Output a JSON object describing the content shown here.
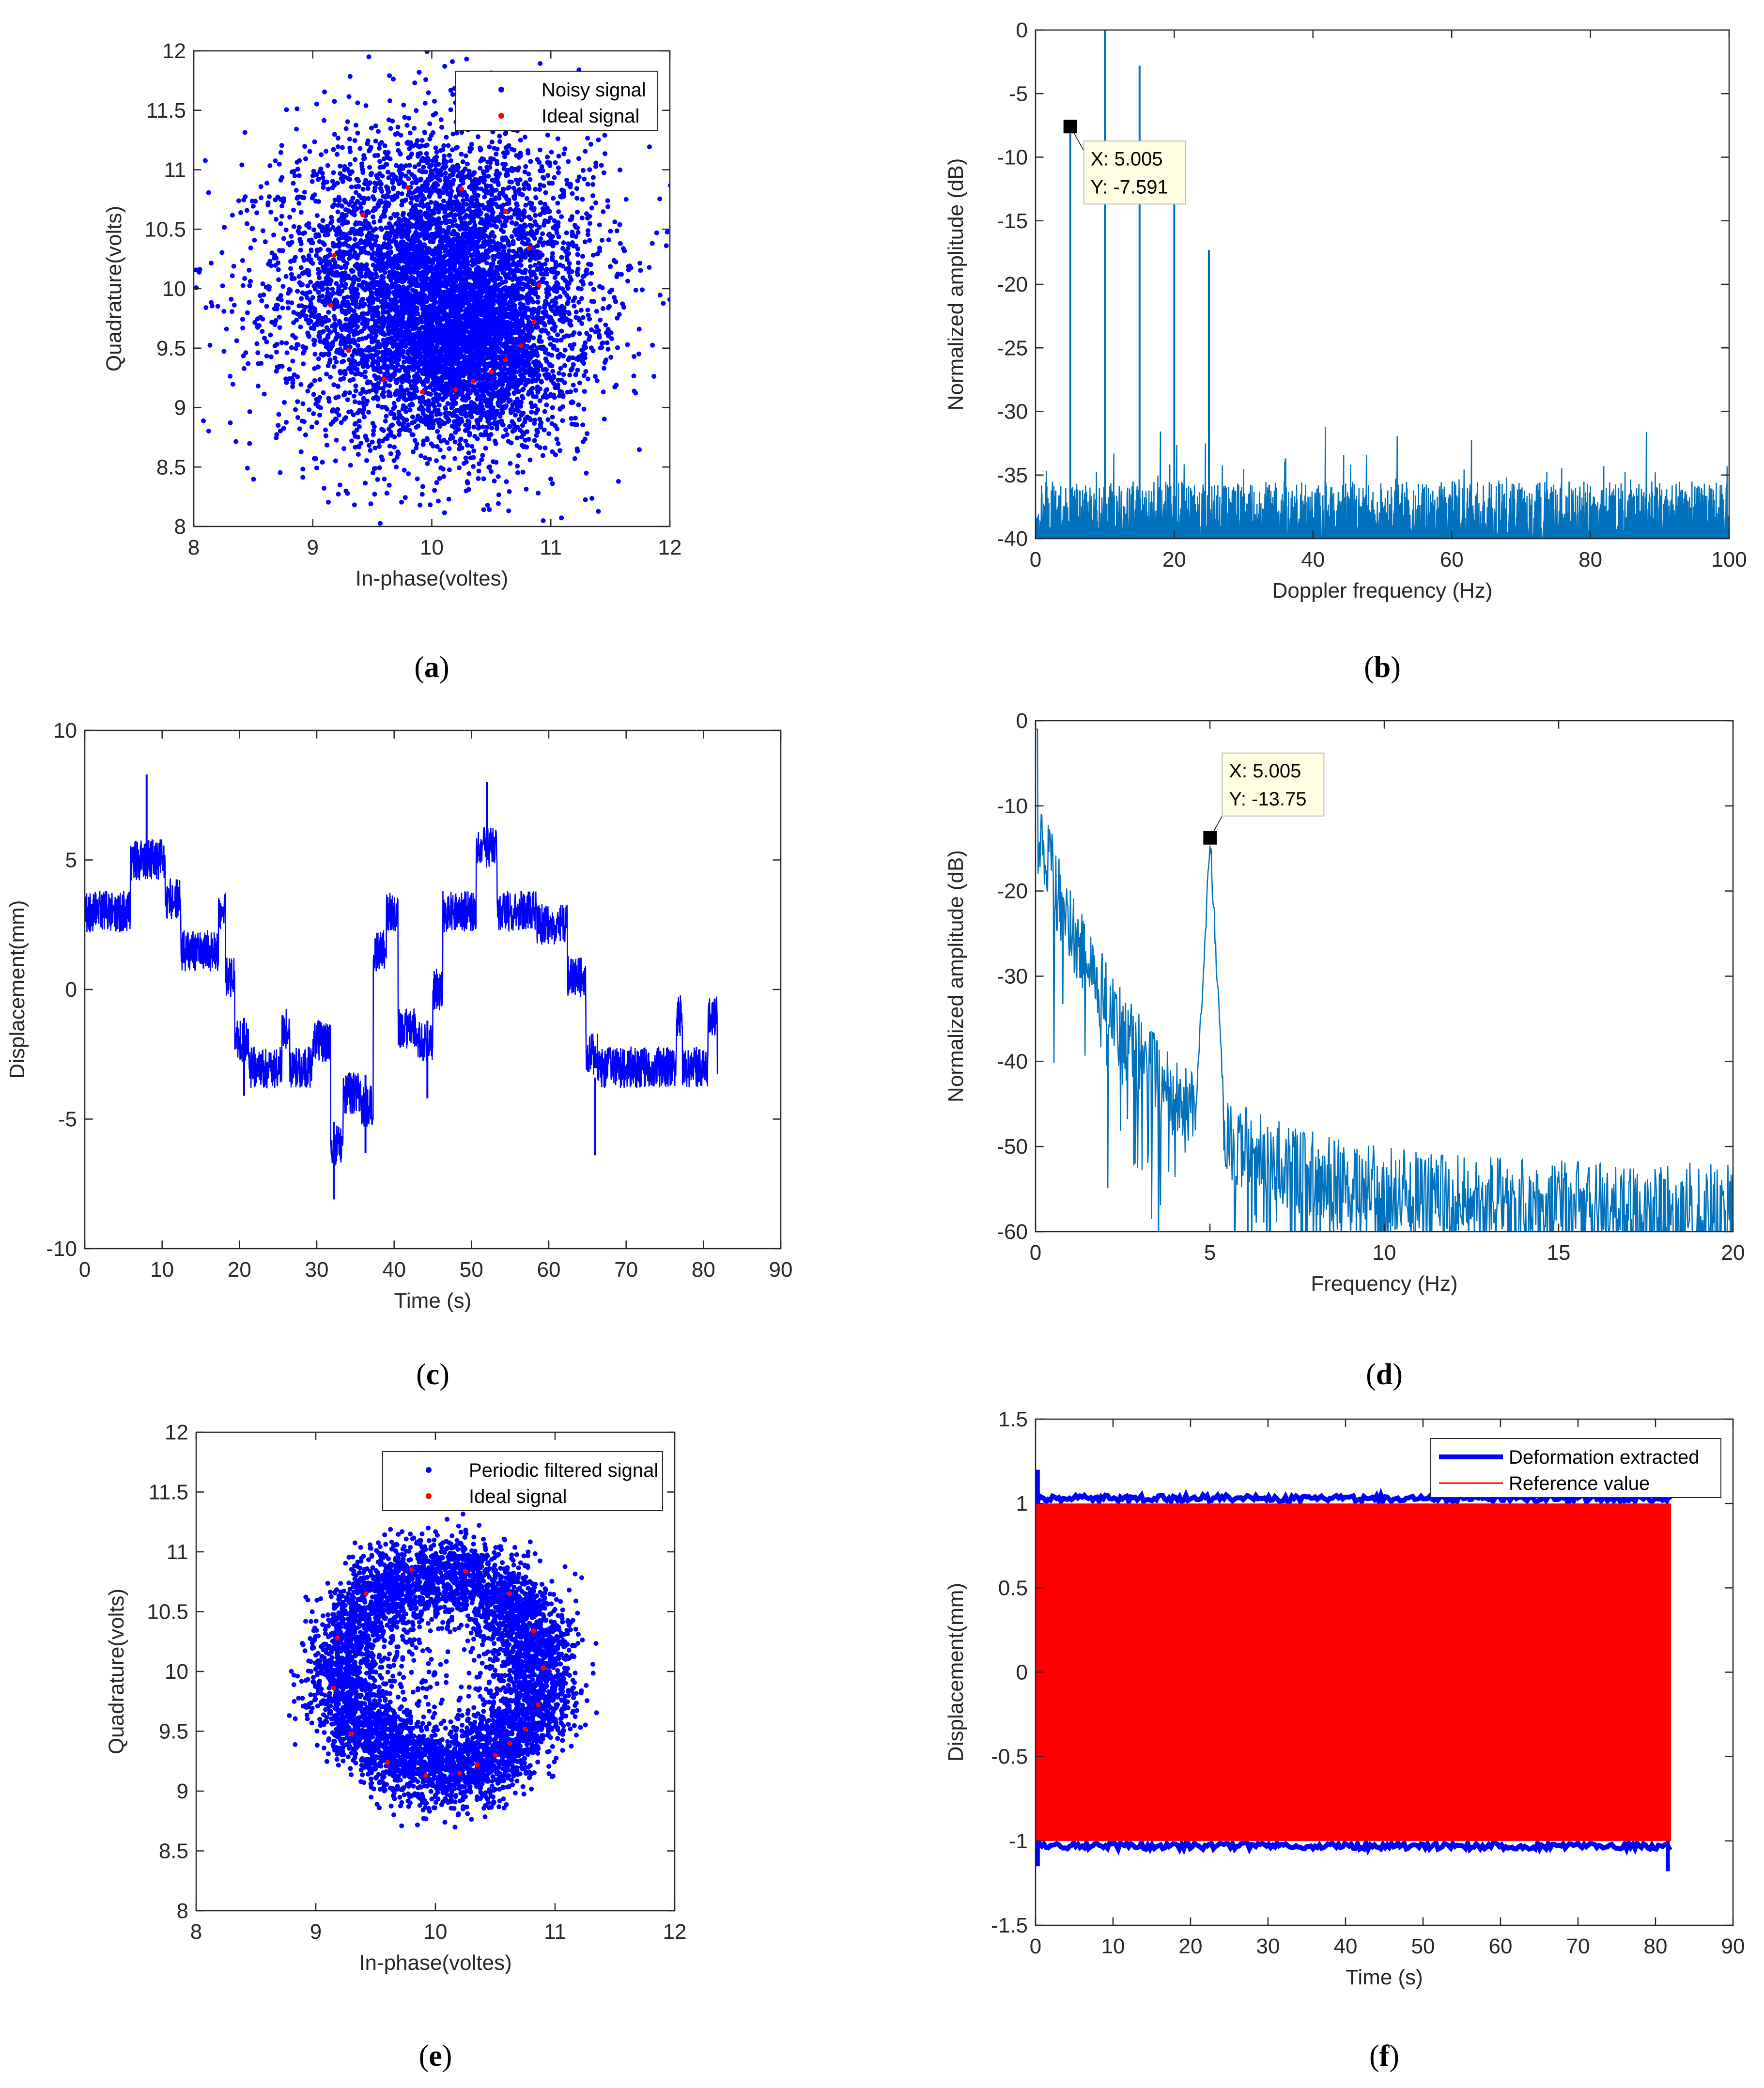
{
  "colors": {
    "blue": "#0000ff",
    "red": "#ff0000",
    "spectrum": "#0072bd",
    "axis": "#262626",
    "tooltip_bg": "#ffffe1"
  },
  "chart_data": [
    {
      "id": "a",
      "type": "scatter",
      "caption": "(a)",
      "caption_letter": "a",
      "xlabel": "In-phase(voltes)",
      "ylabel": "Quadrature(volts)",
      "xlim": [
        8,
        12
      ],
      "ylim": [
        8,
        12
      ],
      "xticks": [
        "8",
        "9",
        "10",
        "11",
        "12"
      ],
      "yticks": [
        "8",
        "8.5",
        "9",
        "9.5",
        "10",
        "10.5",
        "11",
        "11.5",
        "12"
      ],
      "legend": [
        "Noisy signal",
        "Ideal signal"
      ],
      "noise_model": {
        "center": [
          10.05,
          10.0
        ],
        "sd": 0.65,
        "points": 6000
      },
      "ideal_points": [
        [
          9.42,
          10.62
        ],
        [
          9.8,
          10.85
        ],
        [
          10.25,
          10.84
        ],
        [
          10.62,
          10.65
        ],
        [
          10.82,
          10.34
        ],
        [
          10.9,
          10.03
        ],
        [
          10.86,
          9.72
        ],
        [
          10.75,
          9.52
        ],
        [
          10.62,
          9.4
        ],
        [
          10.5,
          9.3
        ],
        [
          10.35,
          9.22
        ],
        [
          10.2,
          9.15
        ],
        [
          9.92,
          9.13
        ],
        [
          9.6,
          9.24
        ],
        [
          9.3,
          9.48
        ],
        [
          9.15,
          9.86
        ],
        [
          9.18,
          10.28
        ]
      ]
    },
    {
      "id": "b",
      "type": "line",
      "caption": "(b)",
      "caption_letter": "b",
      "xlabel": "Doppler frequency (Hz)",
      "ylabel": "Normalized amplitude (dB)",
      "xlim": [
        0,
        100
      ],
      "ylim": [
        -40,
        0
      ],
      "xticks": [
        "0",
        "20",
        "40",
        "60",
        "80",
        "100"
      ],
      "yticks": [
        "-40",
        "-35",
        "-30",
        "-25",
        "-20",
        "-15",
        "-10",
        "-5",
        "0"
      ],
      "noise_floor_db": -38,
      "peaks": [
        {
          "x": 5.005,
          "y": -7.591
        },
        {
          "x": 10,
          "y": 0
        },
        {
          "x": 15,
          "y": -2.8
        },
        {
          "x": 20,
          "y": -13.5
        },
        {
          "x": 25,
          "y": -17.3
        }
      ],
      "datatip": {
        "x": 5.005,
        "y": -7.591,
        "x_text": "X: 5.005",
        "y_text": "Y: -7.591"
      }
    },
    {
      "id": "c",
      "type": "line",
      "caption": "(c)",
      "caption_letter": "c",
      "xlabel": "Time (s)",
      "ylabel": "Displacement(mm)",
      "xlim": [
        0,
        90
      ],
      "ylim": [
        -10,
        10
      ],
      "xticks": [
        "0",
        "10",
        "20",
        "30",
        "40",
        "50",
        "60",
        "70",
        "80",
        "90"
      ],
      "yticks": [
        "-10",
        "-5",
        "0",
        "5",
        "10"
      ],
      "segments": [
        [
          0,
          3
        ],
        [
          5.9,
          5
        ],
        [
          10.4,
          3.5
        ],
        [
          12.4,
          1.5
        ],
        [
          17.3,
          3
        ],
        [
          18.2,
          0.5
        ],
        [
          19.4,
          -2
        ],
        [
          21.2,
          -3
        ],
        [
          25.5,
          -1.5
        ],
        [
          26.5,
          -3
        ],
        [
          29.5,
          -2
        ],
        [
          31.8,
          -6
        ],
        [
          33.4,
          -4
        ],
        [
          35.7,
          -4.5
        ],
        [
          37.3,
          1.5
        ],
        [
          39,
          3
        ],
        [
          40.5,
          -1.5
        ],
        [
          43,
          -2
        ],
        [
          45,
          0
        ],
        [
          46.3,
          3
        ],
        [
          50.6,
          5.5
        ],
        [
          53.3,
          3
        ],
        [
          58.4,
          2.5
        ],
        [
          62.4,
          0.5
        ],
        [
          64.8,
          -2.5
        ],
        [
          66.3,
          -3
        ],
        [
          76.5,
          -1
        ],
        [
          77.3,
          -3
        ],
        [
          80.6,
          -1
        ],
        [
          81.8,
          -3
        ]
      ],
      "spikes": [
        [
          8,
          8.3
        ],
        [
          32.2,
          -8.1
        ],
        [
          52,
          8
        ],
        [
          36.3,
          -6.3
        ],
        [
          66,
          -6.4
        ],
        [
          44.3,
          -4.2
        ],
        [
          20.6,
          -4.1
        ]
      ],
      "t_end": 81.8
    },
    {
      "id": "d",
      "type": "line",
      "caption": "(d)",
      "caption_letter": "d",
      "xlabel": "Frequency (Hz)",
      "ylabel": "Normalized amplitude (dB)",
      "xlim": [
        0,
        20
      ],
      "ylim": [
        -60,
        0
      ],
      "xticks": [
        "0",
        "5",
        "10",
        "15",
        "20"
      ],
      "yticks": [
        "-60",
        "-50",
        "-40",
        "-30",
        "-20",
        "-10",
        "0"
      ],
      "peaks": [
        {
          "x": 5.005,
          "y": -13.75
        }
      ],
      "datatip": {
        "x": 5.005,
        "y": -13.75,
        "x_text": "X: 5.005",
        "y_text": "Y: -13.75"
      }
    },
    {
      "id": "e",
      "type": "scatter",
      "caption": "(e)",
      "caption_letter": "e",
      "xlabel": "In-phase(voltes)",
      "ylabel": "Quadrature(volts)",
      "xlim": [
        8,
        12
      ],
      "ylim": [
        8,
        12
      ],
      "xticks": [
        "8",
        "9",
        "10",
        "11",
        "12"
      ],
      "yticks": [
        "8",
        "8.5",
        "9",
        "9.5",
        "10",
        "10.5",
        "11",
        "11.5",
        "12"
      ],
      "legend": [
        "Periodic filtered signal",
        "Ideal signal"
      ],
      "ring_model": {
        "center": [
          10.05,
          10.0
        ],
        "radius": 0.83,
        "spread": 0.17,
        "points": 5500
      },
      "ideal_points": [
        [
          9.42,
          10.65
        ],
        [
          9.8,
          10.85
        ],
        [
          10.25,
          10.84
        ],
        [
          10.62,
          10.65
        ],
        [
          10.82,
          10.34
        ],
        [
          10.9,
          10.03
        ],
        [
          10.86,
          9.72
        ],
        [
          10.75,
          9.52
        ],
        [
          10.62,
          9.4
        ],
        [
          10.5,
          9.3
        ],
        [
          10.35,
          9.22
        ],
        [
          10.2,
          9.15
        ],
        [
          9.92,
          9.13
        ],
        [
          9.6,
          9.24
        ],
        [
          9.3,
          9.48
        ],
        [
          9.15,
          9.86
        ],
        [
          9.18,
          10.28
        ]
      ]
    },
    {
      "id": "f",
      "type": "line",
      "caption": "(f)",
      "caption_letter": "f",
      "xlabel": "Time (s)",
      "ylabel": "Displacement(mm)",
      "xlim": [
        0,
        90
      ],
      "ylim": [
        -1.5,
        1.5
      ],
      "xticks": [
        "0",
        "10",
        "20",
        "30",
        "40",
        "50",
        "60",
        "70",
        "80",
        "90"
      ],
      "yticks": [
        "-1.5",
        "-1",
        "-0.5",
        "0",
        "0.5",
        "1",
        "1.5"
      ],
      "legend": [
        "Deformation extracted",
        "Reference value"
      ],
      "t_end": 82,
      "amplitude_mm": 1
    }
  ]
}
